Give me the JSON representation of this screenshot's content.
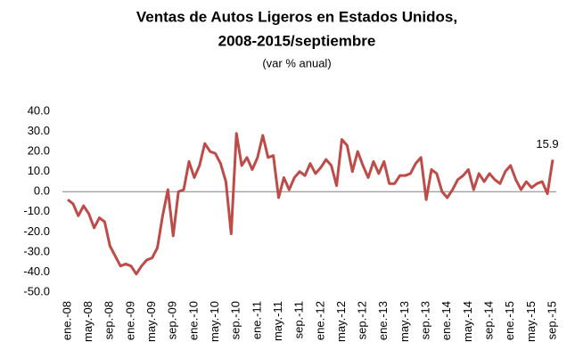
{
  "chart_data": {
    "type": "line",
    "title": [
      "Ventas de Autos Ligeros en Estados Unidos,",
      "2008-2015/septiembre"
    ],
    "subtitle": "(var % anual)",
    "categories": [
      "ene.-08",
      null,
      null,
      null,
      "may.-08",
      null,
      null,
      null,
      "sep.-08",
      null,
      null,
      null,
      "ene.-09",
      null,
      null,
      null,
      "may.-09",
      null,
      null,
      null,
      "sep.-09",
      null,
      null,
      null,
      "ene.-10",
      null,
      null,
      null,
      "may.-10",
      null,
      null,
      null,
      "sep.-10",
      null,
      null,
      null,
      "ene.-11",
      null,
      null,
      null,
      "may.-11",
      null,
      null,
      null,
      "sep.-11",
      null,
      null,
      null,
      "ene.-12",
      null,
      null,
      null,
      "may.-12",
      null,
      null,
      null,
      "sep.-12",
      null,
      null,
      null,
      "ene.-13",
      null,
      null,
      null,
      "may.-13",
      null,
      null,
      null,
      "sep.-13",
      null,
      null,
      null,
      "ene.-14",
      null,
      null,
      null,
      "may.-14",
      null,
      null,
      null,
      "sep.-14",
      null,
      null,
      null,
      "ene.-15",
      null,
      null,
      null,
      "may.-15",
      null,
      null,
      null,
      "sep.-15"
    ],
    "values": [
      -4,
      -6,
      -12,
      -7,
      -11,
      -18,
      -13,
      -15,
      -27,
      -32,
      -37,
      -36,
      -37,
      -41,
      -37,
      -34,
      -33,
      -28,
      -12,
      1,
      -22,
      0,
      1,
      15,
      7,
      13,
      24,
      20,
      19,
      14,
      5,
      -21,
      29,
      13,
      17,
      11,
      17,
      28,
      17,
      18,
      -3,
      7,
      1,
      7,
      10,
      8,
      14,
      9,
      12,
      16,
      13,
      3,
      26,
      23,
      10,
      20,
      13,
      7,
      15,
      9,
      15,
      4,
      4,
      8,
      8,
      9,
      14,
      17,
      -4,
      11,
      9,
      0,
      -3,
      1,
      6,
      8,
      11,
      1,
      9,
      5,
      9,
      6,
      4,
      10,
      13,
      6,
      1,
      5,
      2,
      4,
      5,
      -1,
      15.9
    ],
    "color": "#be4b48",
    "ylim": [
      -50,
      40
    ],
    "yticks": [
      {
        "value": -50,
        "label": "-50.0"
      },
      {
        "value": -40,
        "label": "-40.0"
      },
      {
        "value": -30,
        "label": "-30.0"
      },
      {
        "value": -20,
        "label": "-20.0"
      },
      {
        "value": -10,
        "label": "-10.0"
      },
      {
        "value": 0,
        "label": "0.0"
      },
      {
        "value": 10,
        "label": "10.0"
      },
      {
        "value": 20,
        "label": "20.0"
      },
      {
        "value": 30,
        "label": "30.0"
      },
      {
        "value": 40,
        "label": "40.0"
      }
    ],
    "grid": false
  }
}
